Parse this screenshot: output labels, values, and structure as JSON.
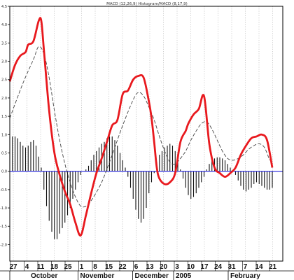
{
  "chart_data": {
    "type": "line",
    "title": "MACD (12,26,9) Histogram/MACD (8,17,9)",
    "ylim": [
      -2.45,
      4.5
    ],
    "y_ticks": [
      "4.5",
      "4.0",
      "3.5",
      "3.0",
      "2.5",
      "2.0",
      "1.5",
      "1.0",
      "0.5",
      "0.0",
      "-0.5",
      "-1.0",
      "-1.5",
      "-2.0"
    ],
    "x_date_labels": [
      "27",
      "4",
      "11",
      "18",
      "25",
      "1",
      "8",
      "15",
      "22",
      "6",
      "13",
      "20",
      "3",
      "10",
      "17",
      "24",
      "31",
      "7",
      "14",
      "21"
    ],
    "months": [
      "October",
      "November",
      "December",
      "2005",
      "February"
    ],
    "grid": true,
    "colors": {
      "macd": "#e8191e",
      "signal": "#444444",
      "histogram": "#111111",
      "zero_line": "#2222dd",
      "grid": "#aaaaaa"
    },
    "series": [
      {
        "style": "solid-thick-red",
        "x": [
          0,
          2,
          4,
          6,
          7,
          9,
          11,
          12,
          13,
          15,
          17,
          19,
          21,
          23,
          25,
          27,
          29,
          31,
          33,
          35,
          37,
          39,
          41,
          43,
          45,
          47,
          49,
          51,
          53,
          54,
          55,
          56,
          57,
          59,
          61,
          63,
          65,
          67,
          68,
          70,
          72,
          74,
          76,
          78,
          80,
          82,
          84,
          86,
          88,
          90,
          92,
          94,
          96,
          98,
          100
        ],
        "values": [
          2.45,
          2.9,
          3.15,
          3.25,
          3.45,
          3.55,
          4.1,
          4.1,
          3.3,
          1.65,
          0.5,
          -0.1,
          -0.55,
          -0.9,
          -1.4,
          -1.75,
          -1.2,
          -0.6,
          -0.05,
          0.35,
          0.8,
          1.25,
          1.4,
          2.1,
          2.2,
          2.5,
          2.6,
          2.55,
          1.9,
          1.45,
          0.8,
          0.1,
          -0.2,
          -0.35,
          -0.3,
          -0.05,
          0.8,
          1.1,
          1.3,
          1.55,
          1.7,
          2.05,
          0.75,
          0.1,
          -0.05,
          -0.15,
          -0.05,
          0.1,
          0.45,
          0.7,
          0.9,
          0.95,
          1.0,
          0.85,
          0.1
        ]
      },
      {
        "style": "dashed-thin-dark",
        "x": [
          0,
          5,
          9,
          11,
          13,
          15,
          17,
          19,
          21,
          23,
          25,
          27,
          29,
          31,
          35,
          39,
          43,
          47,
          49,
          51,
          53,
          55,
          57,
          59,
          61,
          63,
          65,
          67,
          69,
          71,
          73,
          75,
          77,
          79,
          81,
          83,
          85,
          87,
          89,
          91,
          93,
          95,
          97,
          99
        ],
        "values": [
          1.45,
          2.4,
          3.05,
          3.4,
          3.2,
          2.55,
          1.65,
          0.85,
          0.2,
          -0.3,
          -0.7,
          -0.95,
          -0.95,
          -0.8,
          -0.3,
          0.45,
          1.25,
          1.95,
          2.15,
          2.05,
          1.75,
          1.4,
          0.95,
          0.55,
          0.25,
          0.2,
          0.35,
          0.55,
          0.85,
          1.1,
          1.3,
          1.35,
          1.15,
          0.85,
          0.55,
          0.35,
          0.3,
          0.35,
          0.45,
          0.6,
          0.7,
          0.75,
          0.65,
          0.3
        ]
      }
    ],
    "histogram": {
      "x": [
        0,
        1,
        2,
        3,
        4,
        5,
        6,
        7,
        8,
        9,
        10,
        11,
        12,
        13,
        14,
        15,
        16,
        17,
        18,
        19,
        20,
        21,
        22,
        23,
        24,
        25,
        26,
        27,
        28,
        29,
        30,
        31,
        32,
        33,
        34,
        35,
        36,
        37,
        38,
        39,
        40,
        41,
        42,
        43,
        44,
        45,
        46,
        47,
        48,
        49,
        50,
        51,
        52,
        53,
        54,
        55,
        56,
        57,
        58,
        59,
        60,
        61,
        62,
        63,
        64,
        65,
        66,
        67,
        68,
        69,
        70,
        71,
        72,
        73,
        74,
        75,
        76,
        77,
        78,
        79,
        80,
        81,
        82,
        83,
        84,
        85,
        86,
        87,
        88,
        89,
        90,
        91,
        92,
        93,
        94,
        95,
        96,
        97,
        98,
        99,
        100
      ],
      "values": [
        0.95,
        0.95,
        0.95,
        0.9,
        0.8,
        0.7,
        0.65,
        0.7,
        0.8,
        0.85,
        0.7,
        0.4,
        0.1,
        -0.5,
        -0.95,
        -1.35,
        -1.65,
        -1.85,
        -1.85,
        -1.7,
        -1.55,
        -1.4,
        -1.2,
        -1.0,
        -0.75,
        -0.5,
        -0.3,
        -0.1,
        0.0,
        0.05,
        0.15,
        0.3,
        0.45,
        0.55,
        0.65,
        0.75,
        0.8,
        0.9,
        0.95,
        0.95,
        0.85,
        0.7,
        0.5,
        0.3,
        0.1,
        -0.15,
        -0.45,
        -0.75,
        -1.05,
        -1.3,
        -1.4,
        -1.3,
        -1.0,
        -0.6,
        -0.3,
        -0.05,
        0.25,
        0.45,
        0.55,
        0.65,
        0.7,
        0.75,
        0.7,
        0.55,
        0.3,
        0.05,
        -0.2,
        -0.45,
        -0.65,
        -0.75,
        -0.7,
        -0.6,
        -0.45,
        -0.3,
        -0.15,
        0.05,
        0.2,
        0.3,
        0.35,
        0.38,
        0.38,
        0.35,
        0.3,
        0.2,
        0.1,
        0.0,
        -0.1,
        -0.25,
        -0.4,
        -0.5,
        -0.55,
        -0.5,
        -0.45,
        -0.35,
        -0.3,
        -0.35,
        -0.4,
        -0.45,
        -0.5,
        -0.5,
        -0.45
      ]
    }
  }
}
